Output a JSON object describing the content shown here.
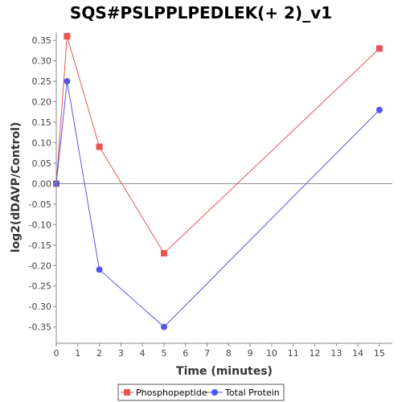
{
  "chart_data": {
    "type": "line",
    "title": "SQS#PSLPPLPEDLEK(+ 2)_v1",
    "xlabel": "Time (minutes)",
    "ylabel": "log2(dDAVP/Control)",
    "xlim": [
      0,
      15.6
    ],
    "ylim": [
      -0.39,
      0.37
    ],
    "xticks": [
      0,
      1,
      2,
      3,
      4,
      5,
      6,
      7,
      8,
      9,
      10,
      11,
      12,
      13,
      14,
      15
    ],
    "yticks": [
      -0.35,
      -0.3,
      -0.25,
      -0.2,
      -0.15,
      -0.1,
      -0.05,
      0.0,
      0.05,
      0.1,
      0.15,
      0.2,
      0.25,
      0.3,
      0.35
    ],
    "ytick_labels": [
      "-0.35",
      "-0.30",
      "-0.25",
      "-0.20",
      "-0.15",
      "-0.10",
      "-0.05",
      "0.00",
      "0.05",
      "0.10",
      "0.15",
      "0.20",
      "0.25",
      "0.30",
      "0.35"
    ],
    "grid": false,
    "zero_line": true,
    "legend_position": "bottom",
    "series": [
      {
        "name": "Phosphopeptide",
        "marker": "square",
        "color": "#e85454",
        "x": [
          0,
          0.5,
          2,
          5,
          15
        ],
        "y": [
          0.0,
          0.36,
          0.09,
          -0.17,
          0.33
        ]
      },
      {
        "name": "Total Protein",
        "marker": "circle",
        "color": "#5555ee",
        "x": [
          0,
          0.5,
          2,
          5,
          15
        ],
        "y": [
          0.0,
          0.25,
          -0.21,
          -0.35,
          0.18
        ]
      }
    ]
  }
}
